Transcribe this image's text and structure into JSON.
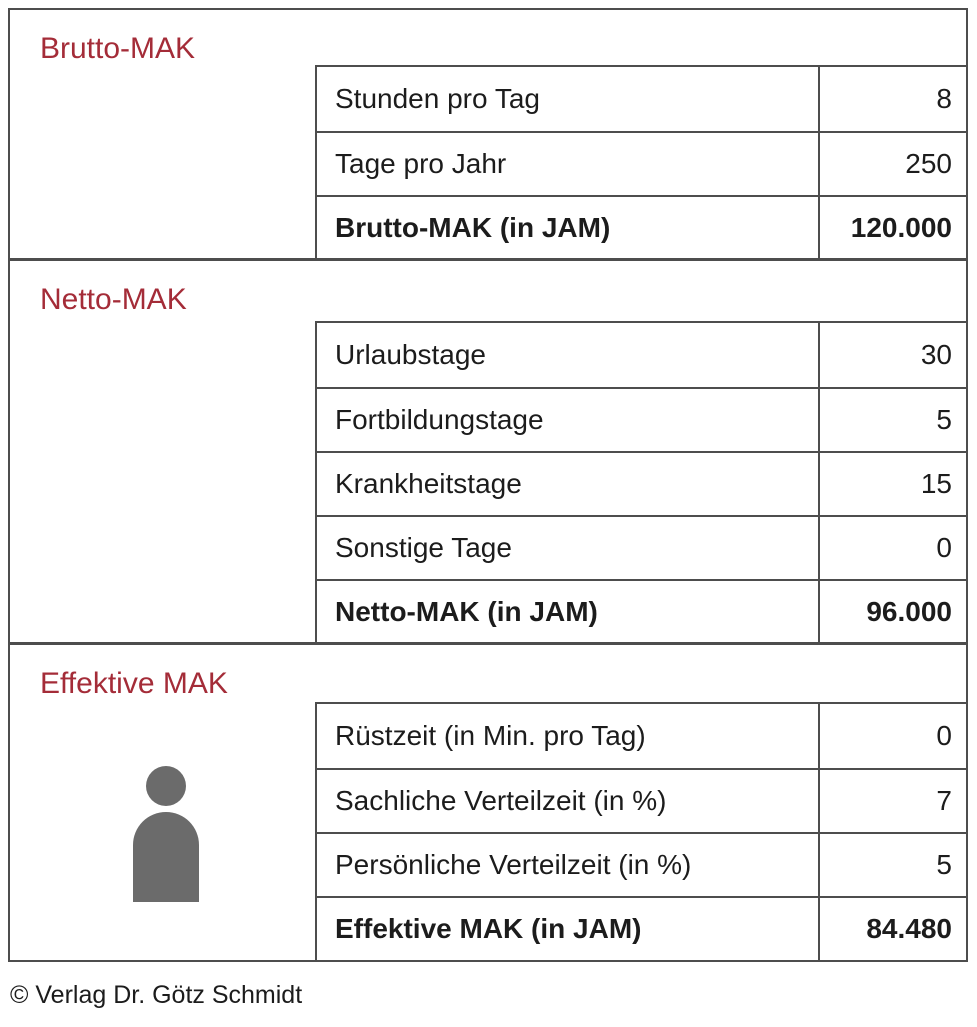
{
  "colors": {
    "accent": "#A42C38",
    "border": "#4D4D4D",
    "icon": "#6B6B6B",
    "text": "#1C1C1C"
  },
  "sections": [
    {
      "title": "Brutto-MAK",
      "rows": [
        {
          "label": "Stunden pro Tag",
          "value": "8",
          "bold": false
        },
        {
          "label": "Tage pro Jahr",
          "value": "250",
          "bold": false
        },
        {
          "label": "Brutto-MAK (in JAM)",
          "value": "120.000",
          "bold": true
        }
      ]
    },
    {
      "title": "Netto-MAK",
      "rows": [
        {
          "label": "Urlaubstage",
          "value": "30",
          "bold": false
        },
        {
          "label": "Fortbildungstage",
          "value": "5",
          "bold": false
        },
        {
          "label": "Krankheitstage",
          "value": "15",
          "bold": false
        },
        {
          "label": "Sonstige Tage",
          "value": "0",
          "bold": false
        },
        {
          "label": "Netto-MAK (in JAM)",
          "value": "96.000",
          "bold": true
        }
      ]
    },
    {
      "title": "Effektive MAK",
      "icon": "person-icon",
      "rows": [
        {
          "label": "Rüstzeit (in Min. pro Tag)",
          "value": "0",
          "bold": false
        },
        {
          "label": "Sachliche Verteilzeit (in %)",
          "value": "7",
          "bold": false
        },
        {
          "label": "Persönliche Verteilzeit (in %)",
          "value": "5",
          "bold": false
        },
        {
          "label": "Effektive MAK (in JAM)",
          "value": "84.480",
          "bold": true
        }
      ]
    }
  ],
  "footer": {
    "copyright": "© Verlag Dr. Götz Schmidt"
  }
}
